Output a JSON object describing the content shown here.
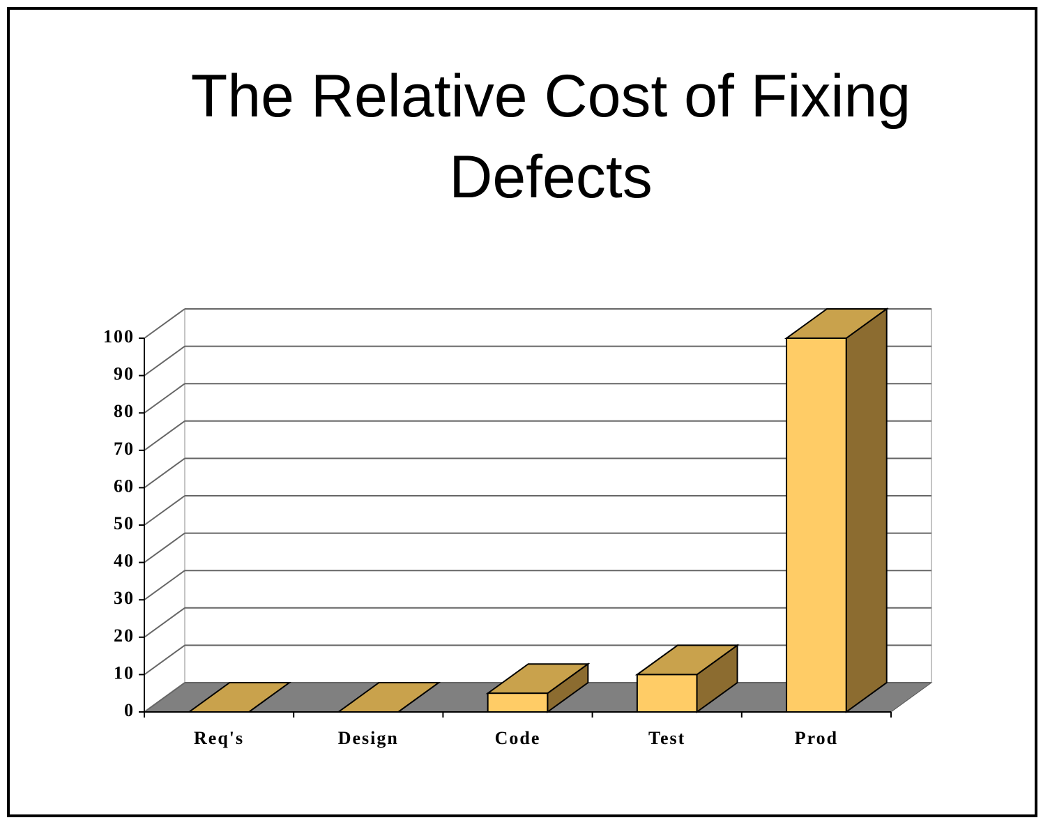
{
  "chart_data": {
    "type": "bar3d",
    "title": "The Relative Cost of Fixing Defects",
    "categories": [
      "Req's",
      "Design",
      "Code",
      "Test",
      "Prod"
    ],
    "values": [
      0,
      0,
      5,
      10,
      100
    ],
    "color": "#ffcc66",
    "ylim": [
      0,
      100
    ],
    "yticks": [
      0,
      10,
      20,
      30,
      40,
      50,
      60,
      70,
      80,
      90,
      100
    ],
    "grid": true
  }
}
